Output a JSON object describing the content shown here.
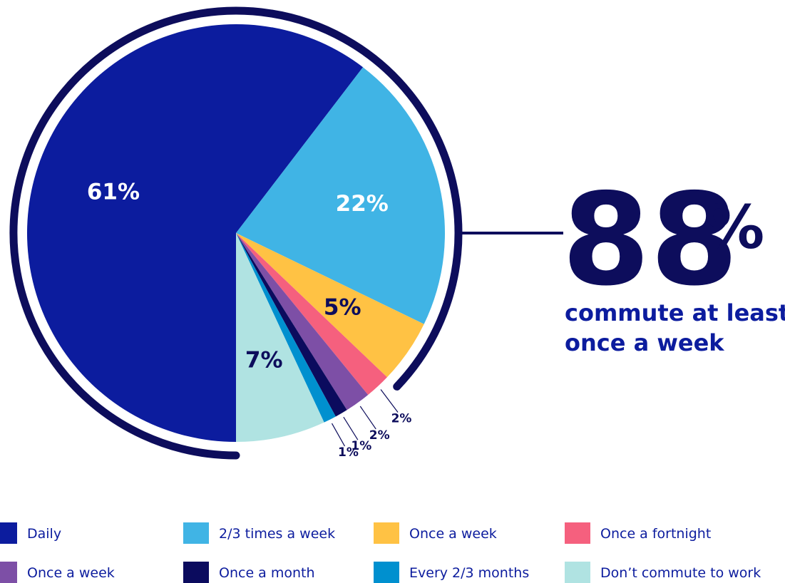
{
  "chart_data": {
    "type": "pie",
    "categories": [
      "Daily",
      "2/3 times a week",
      "Once a week",
      "Once a fortnight",
      "Once a week",
      "Once a month",
      "Every 2/3 months",
      "Don’t commute to work"
    ],
    "values": [
      61,
      22,
      5,
      2,
      2,
      1,
      1,
      7
    ],
    "value_labels": [
      "61%",
      "22%",
      "5%",
      "2%",
      "2%",
      "1%",
      "1%",
      "7%"
    ],
    "colors": [
      "#0c1c9e",
      "#40b4e5",
      "#ffc244",
      "#f5607e",
      "#7d4fa6",
      "#0b0b5e",
      "#0090cf",
      "#b0e3e2"
    ],
    "start_angle": 180,
    "direction": "clockwise",
    "callout": {
      "number": "88",
      "unit": "%",
      "text": [
        "commute at least",
        "once a week"
      ],
      "color": "#0d0d5c"
    }
  }
}
